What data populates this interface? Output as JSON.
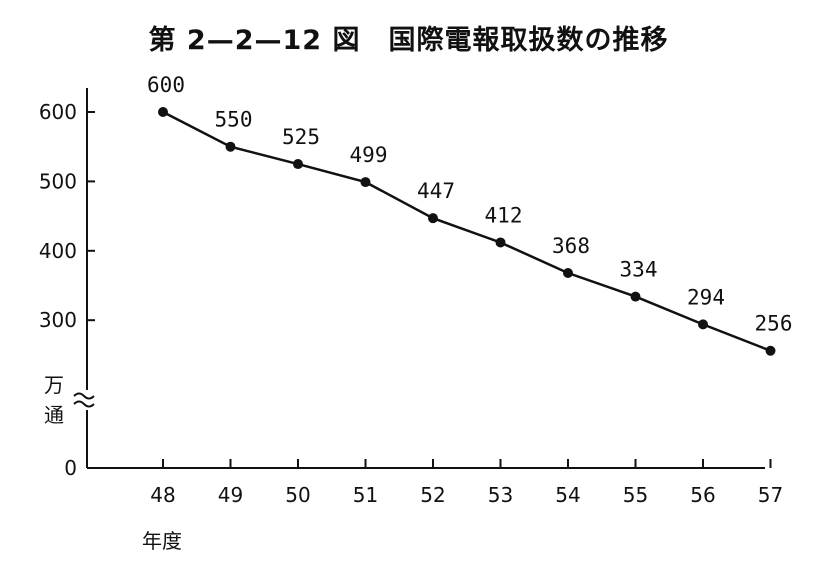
{
  "title": "第 2—2—12 図　国際電報取扱数の推移",
  "chart_data": {
    "type": "line",
    "title": "第 2—2—12 図　国際電報取扱数の推移",
    "xlabel": "年度",
    "ylabel": "万通",
    "x": [
      "48",
      "49",
      "50",
      "51",
      "52",
      "53",
      "54",
      "55",
      "56",
      "57"
    ],
    "series": [
      {
        "values": [
          600,
          550,
          525,
          499,
          447,
          412,
          368,
          334,
          294,
          256
        ]
      }
    ],
    "data_labels": [
      "600",
      "550",
      "525",
      "499",
      "447",
      "412",
      "368",
      "334",
      "294",
      "256"
    ],
    "y_ticks": [
      "600",
      "500",
      "400",
      "300",
      "0"
    ],
    "ylim": [
      0,
      650
    ],
    "y_axis_break": true,
    "grid": false,
    "legend": "none",
    "colors": {
      "line": "#111111",
      "point": "#111111"
    }
  }
}
